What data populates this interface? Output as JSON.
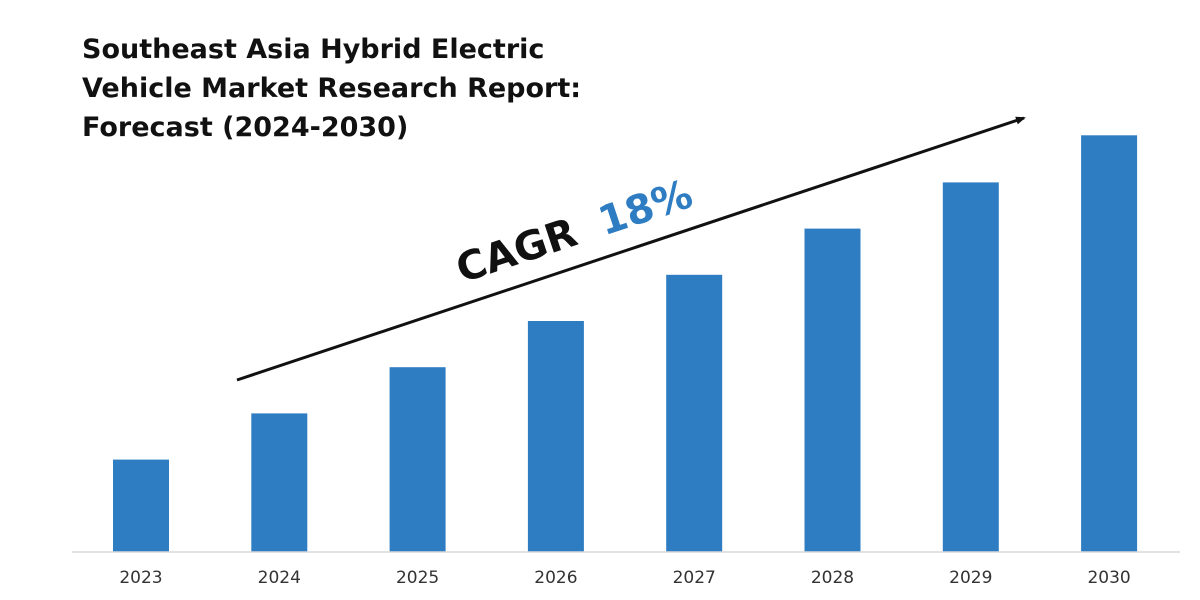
{
  "chart_data": {
    "type": "bar",
    "title_lines": [
      "Southeast Asia Hybrid Electric",
      "Vehicle Market Research Report:",
      "Forecast (2024-2030)"
    ],
    "categories": [
      "2023",
      "2024",
      "2025",
      "2026",
      "2027",
      "2028",
      "2029",
      "2030"
    ],
    "values": [
      20,
      30,
      40,
      50,
      60,
      70,
      80,
      90.2
    ],
    "ylim": [
      0,
      100
    ],
    "xlabel": "",
    "ylabel": "",
    "grid": false,
    "bar_color": "#2E7DC2",
    "annotation": {
      "label": "CAGR",
      "value": "18%",
      "label_color": "#111111",
      "value_color": "#2E7DC2"
    }
  }
}
